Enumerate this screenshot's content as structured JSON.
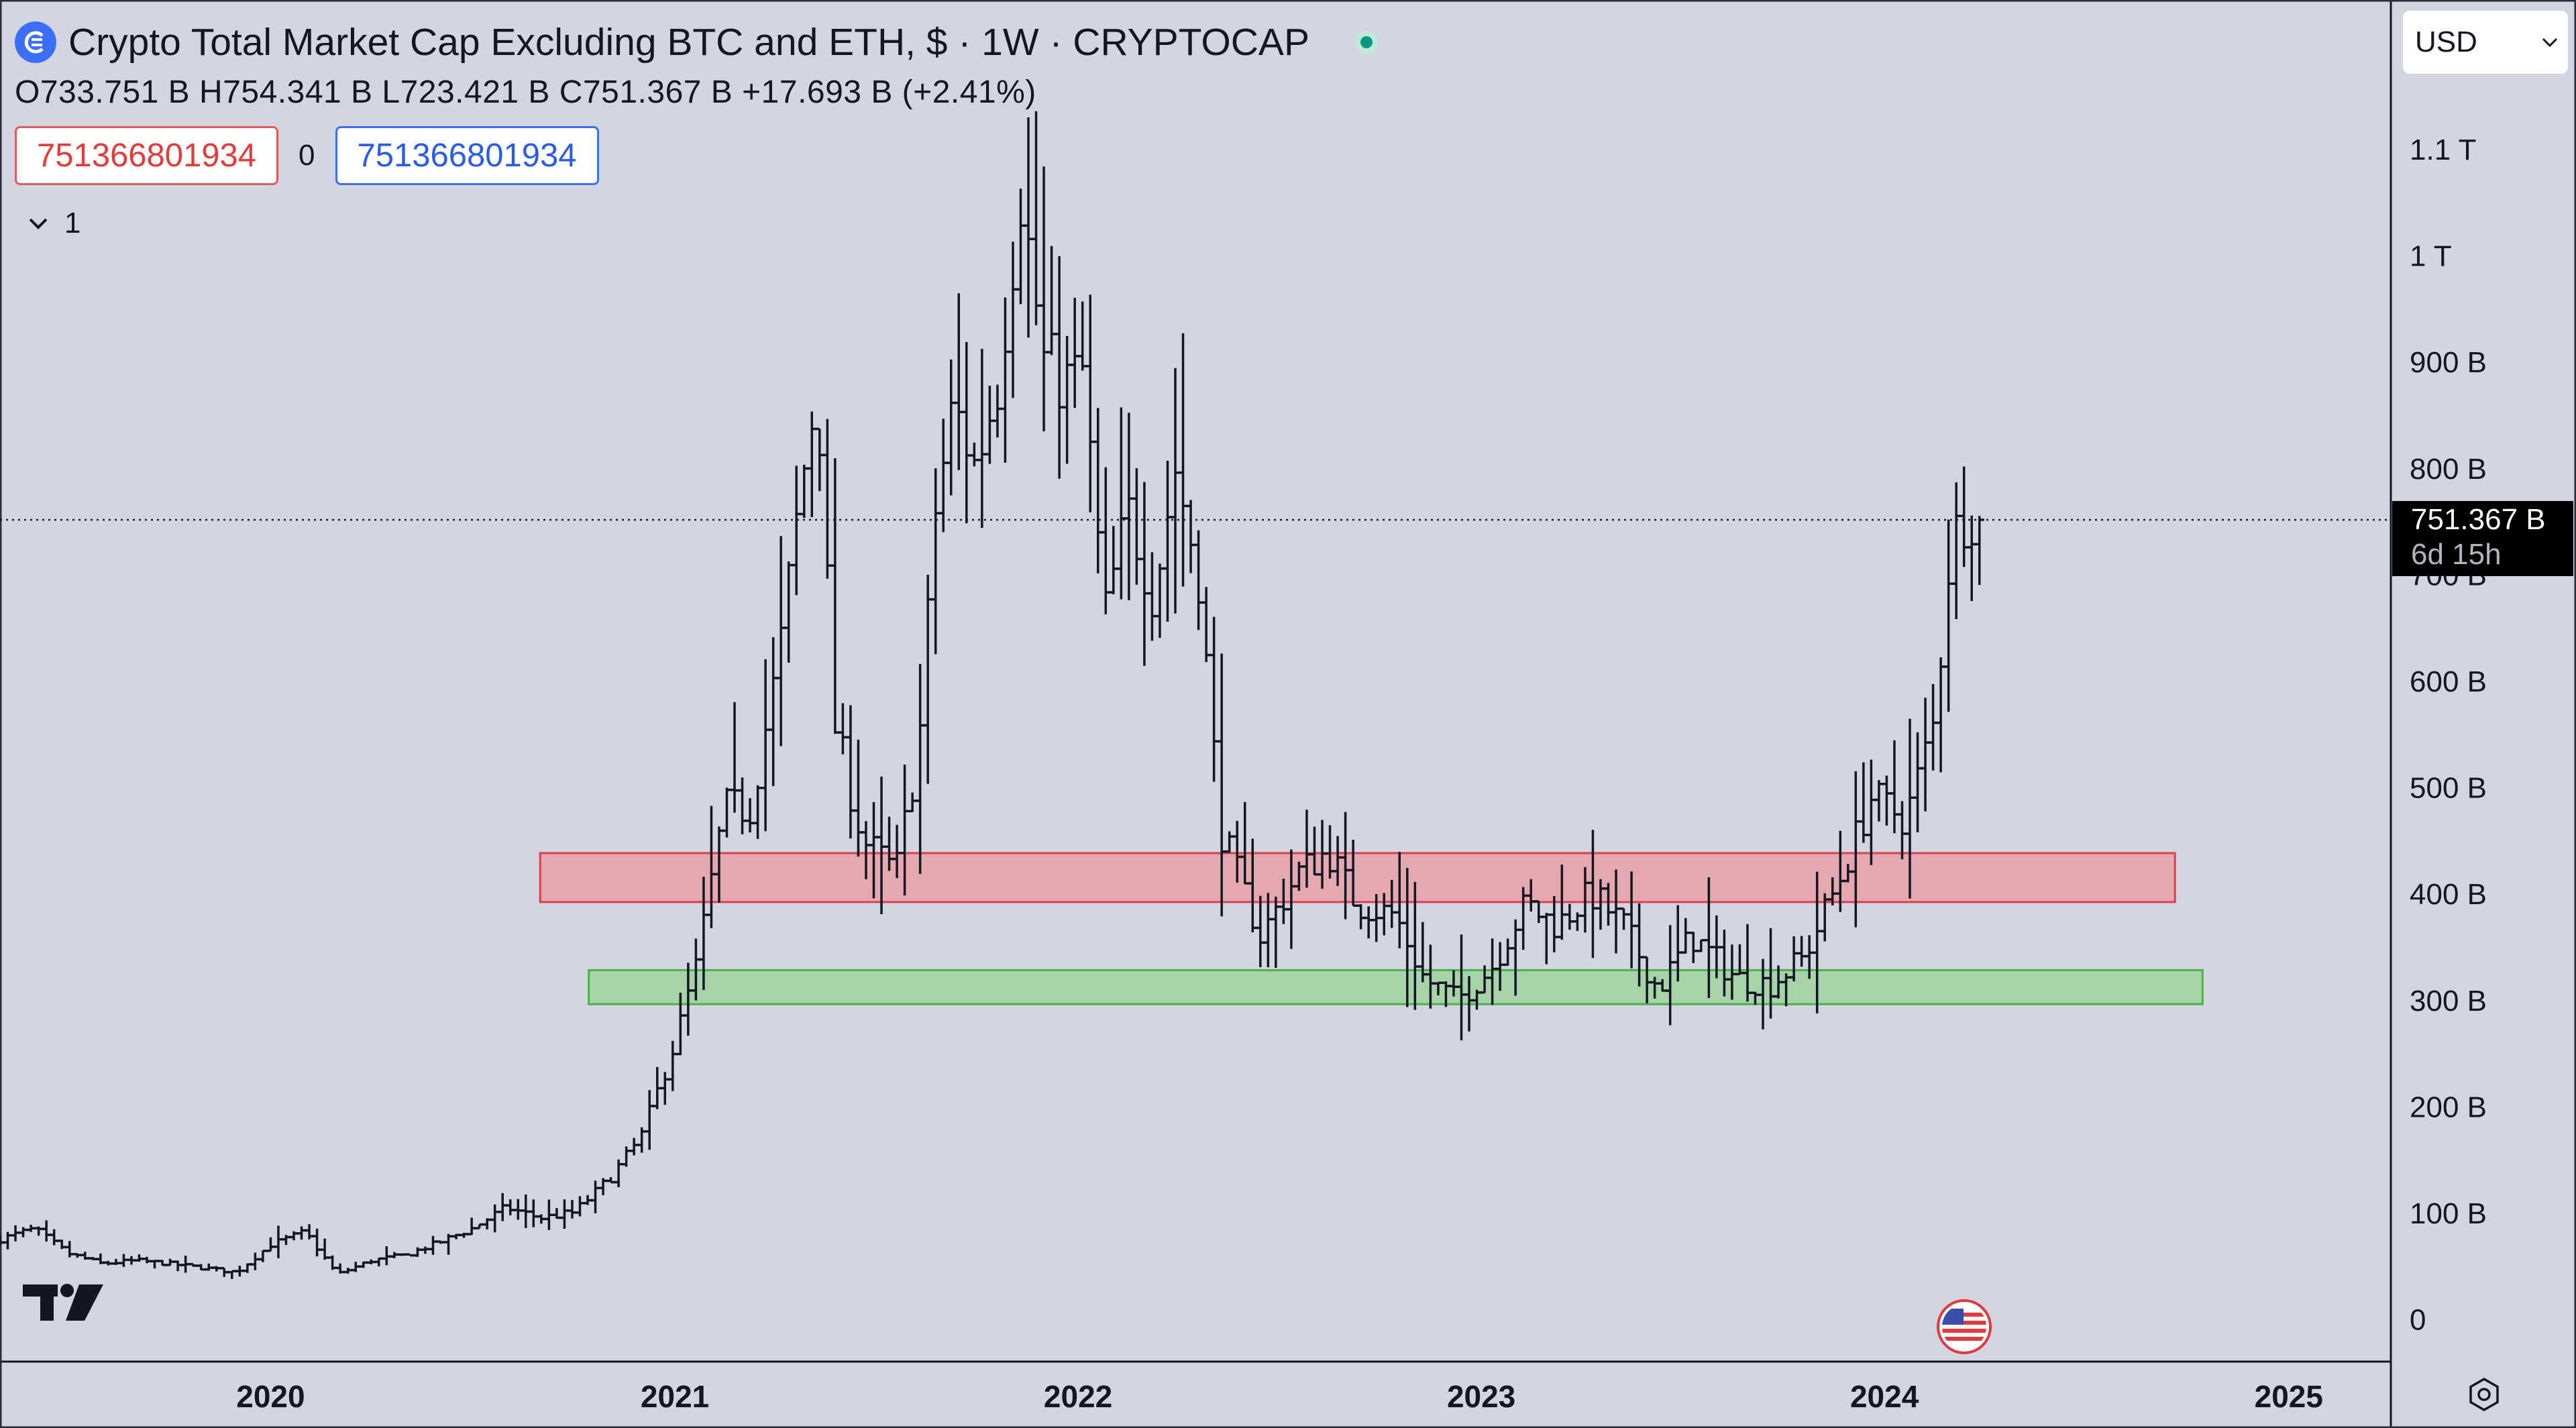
{
  "header": {
    "title": "Crypto Total Market Cap Excluding BTC and ETH, $ · 1W · CRYPTOCAP",
    "ohlc": "O733.751 B  H754.341 B  L723.421 B  C751.367 B  +17.693 B (+2.41%)",
    "sell_value": "751366801934",
    "spread": "0",
    "buy_value": "751366801934",
    "indicator_count": "1"
  },
  "currency_select": {
    "value": "USD"
  },
  "price_label": {
    "value": "751.367 B",
    "countdown": "6d 15h"
  },
  "icons": {
    "logo": "cryptocap-logo-icon",
    "live": "market-live-dot-icon",
    "chevron": "chevron-down-icon",
    "settings": "settings-gear-icon",
    "brand": "tradingview-logo-icon",
    "flag": "us-flag-icon"
  },
  "colors": {
    "background": "#d3d6e0",
    "bars": "#131722",
    "resistance_zone": "#e8a0a8",
    "support_zone": "#9fd29f",
    "price_label_bg": "#000000"
  },
  "chart_data": {
    "type": "bar",
    "subtype": "ohlc",
    "interval": "1W",
    "symbol": "CRYPTOCAP",
    "y_axis": {
      "unit": "USD",
      "ticks": [
        {
          "value": 0,
          "label": "0"
        },
        {
          "value": 100,
          "label": "100 B"
        },
        {
          "value": 200,
          "label": "200 B"
        },
        {
          "value": 300,
          "label": "300 B"
        },
        {
          "value": 400,
          "label": "400 B"
        },
        {
          "value": 500,
          "label": "500 B"
        },
        {
          "value": 600,
          "label": "600 B"
        },
        {
          "value": 700,
          "label": "700 B"
        },
        {
          "value": 800,
          "label": "800 B"
        },
        {
          "value": 900,
          "label": "900 B"
        },
        {
          "value": 1000,
          "label": "1 T"
        },
        {
          "value": 1100,
          "label": "1.1 T"
        }
      ],
      "ylim_billions": [
        -40,
        1240
      ]
    },
    "x_axis": {
      "ticks": [
        "2020",
        "2021",
        "2022",
        "2023",
        "2024",
        "2025"
      ],
      "xlim": [
        "2019-05-01",
        "2025-04-01"
      ]
    },
    "zones": [
      {
        "name": "resistance",
        "start": "2020-09-01",
        "end": "2024-09-20",
        "low": 392,
        "high": 438
      },
      {
        "name": "support",
        "start": "2020-10-15",
        "end": "2024-10-15",
        "low": 296,
        "high": 328
      }
    ],
    "last_close": 751.367,
    "keypoints": [
      [
        "2019-05-01",
        75
      ],
      [
        "2019-06-01",
        85
      ],
      [
        "2019-07-01",
        62
      ],
      [
        "2019-08-01",
        52
      ],
      [
        "2019-09-01",
        55
      ],
      [
        "2019-10-01",
        52
      ],
      [
        "2019-11-01",
        48
      ],
      [
        "2019-12-01",
        44
      ],
      [
        "2020-01-01",
        70
      ],
      [
        "2020-02-01",
        82
      ],
      [
        "2020-03-01",
        42
      ],
      [
        "2020-04-01",
        55
      ],
      [
        "2020-05-01",
        60
      ],
      [
        "2020-06-01",
        72
      ],
      [
        "2020-07-01",
        85
      ],
      [
        "2020-08-01",
        105
      ],
      [
        "2020-09-01",
        95
      ],
      [
        "2020-10-01",
        100
      ],
      [
        "2020-11-01",
        130
      ],
      [
        "2020-12-01",
        170
      ],
      [
        "2021-01-01",
        260
      ],
      [
        "2021-01-20",
        330
      ],
      [
        "2021-02-15",
        480
      ],
      [
        "2021-03-10",
        480
      ],
      [
        "2021-04-05",
        620
      ],
      [
        "2021-04-25",
        780
      ],
      [
        "2021-05-10",
        880
      ],
      [
        "2021-05-25",
        560
      ],
      [
        "2021-06-20",
        450
      ],
      [
        "2021-07-20",
        420
      ],
      [
        "2021-08-10",
        540
      ],
      [
        "2021-08-25",
        760
      ],
      [
        "2021-09-10",
        860
      ],
      [
        "2021-09-30",
        800
      ],
      [
        "2021-10-20",
        880
      ],
      [
        "2021-11-10",
        1060
      ],
      [
        "2021-12-01",
        900
      ],
      [
        "2021-12-20",
        880
      ],
      [
        "2022-01-05",
        890
      ],
      [
        "2022-01-25",
        660
      ],
      [
        "2022-02-15",
        760
      ],
      [
        "2022-03-10",
        680
      ],
      [
        "2022-03-30",
        800
      ],
      [
        "2022-04-20",
        700
      ],
      [
        "2022-05-10",
        460
      ],
      [
        "2022-06-15",
        360
      ],
      [
        "2022-07-20",
        420
      ],
      [
        "2022-08-15",
        440
      ],
      [
        "2022-09-10",
        390
      ],
      [
        "2022-10-15",
        380
      ],
      [
        "2022-11-10",
        320
      ],
      [
        "2022-12-10",
        300
      ],
      [
        "2023-01-10",
        330
      ],
      [
        "2023-02-10",
        390
      ],
      [
        "2023-03-10",
        370
      ],
      [
        "2023-04-10",
        400
      ],
      [
        "2023-05-10",
        370
      ],
      [
        "2023-06-10",
        310
      ],
      [
        "2023-07-10",
        360
      ],
      [
        "2023-08-20",
        320
      ],
      [
        "2023-09-20",
        315
      ],
      [
        "2023-10-20",
        340
      ],
      [
        "2023-11-20",
        410
      ],
      [
        "2023-12-20",
        490
      ],
      [
        "2024-01-20",
        470
      ],
      [
        "2024-02-15",
        560
      ],
      [
        "2024-03-01",
        730
      ],
      [
        "2024-03-15",
        760
      ],
      [
        "2024-04-01",
        751.367
      ]
    ],
    "title": "Crypto Total Market Cap Excluding BTC and ETH, $ · 1W · CRYPTOCAP"
  }
}
